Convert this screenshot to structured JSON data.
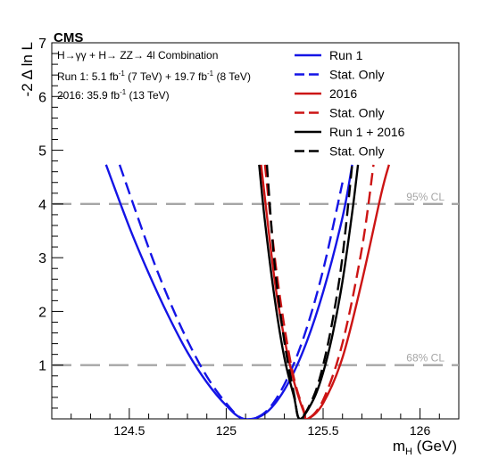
{
  "chart_data": {
    "type": "line",
    "experiment": "CMS",
    "annotations": {
      "process": "H→γγ + H→ ZZ→ 4l Combination",
      "run1_lumi_prefix": "Run 1: 5.1 fb",
      "run1_lumi_mid": " (7 TeV) + 19.7 fb",
      "run1_lumi_suffix": " (8 TeV)",
      "run2016_lumi_prefix": "2016: 35.9 fb",
      "run2016_lumi_suffix": " (13 TeV)",
      "inverse_exponent": "-1"
    },
    "xlabel_main": "m",
    "xlabel_sub": "H",
    "xlabel_unit": " (GeV)",
    "ylabel": "-2 Δ ln L",
    "xlim": [
      124.1,
      126.2
    ],
    "ylim": [
      0,
      7
    ],
    "x_ticks": [
      {
        "value": 124.5,
        "label": "124.5"
      },
      {
        "value": 125.0,
        "label": "125"
      },
      {
        "value": 125.5,
        "label": "125.5"
      },
      {
        "value": 126.0,
        "label": "126"
      }
    ],
    "y_ticks": [
      {
        "value": 1,
        "label": "1"
      },
      {
        "value": 2,
        "label": "2"
      },
      {
        "value": 3,
        "label": "3"
      },
      {
        "value": 4,
        "label": "4"
      },
      {
        "value": 5,
        "label": "5"
      },
      {
        "value": 6,
        "label": "6"
      },
      {
        "value": 7,
        "label": "7"
      }
    ],
    "reference_lines": [
      {
        "y": 4,
        "label": "95% CL",
        "color": "#a6a6a6"
      },
      {
        "y": 1,
        "label": "68% CL",
        "color": "#a6a6a6"
      }
    ],
    "series": [
      {
        "name": "Run 1",
        "color": "#1414e6",
        "dash": "solid",
        "x": [
          124.38,
          124.5,
          124.6,
          124.7,
          124.8,
          124.9,
          125.0,
          125.09,
          125.2,
          125.3,
          125.4,
          125.5,
          125.6,
          125.65
        ],
        "y": [
          4.73,
          3.57,
          2.71,
          1.93,
          1.24,
          0.68,
          0.25,
          0.0,
          0.1,
          0.54,
          1.29,
          2.36,
          3.75,
          4.73
        ]
      },
      {
        "name": "Stat. Only",
        "color": "#1414e6",
        "dash": "dashed",
        "x": [
          124.45,
          124.6,
          124.7,
          124.8,
          124.9,
          125.0,
          125.09,
          125.2,
          125.3,
          125.4,
          125.5,
          125.6
        ],
        "y": [
          4.73,
          3.18,
          2.26,
          1.46,
          0.79,
          0.29,
          0.0,
          0.12,
          0.64,
          1.52,
          2.77,
          4.4
        ]
      },
      {
        "name": "2016",
        "color": "#cc1414",
        "dash": "solid",
        "x": [
          125.18,
          125.25,
          125.3,
          125.35,
          125.4,
          125.42,
          125.5,
          125.6,
          125.7,
          125.8,
          125.84
        ],
        "y": [
          4.73,
          2.58,
          1.5,
          0.69,
          0.13,
          0.0,
          0.29,
          1.14,
          2.56,
          4.19,
          4.73
        ]
      },
      {
        "name": "Stat. Only",
        "color": "#cc1414",
        "dash": "dashed",
        "x": [
          125.2,
          125.25,
          125.3,
          125.35,
          125.4,
          125.42,
          125.5,
          125.6,
          125.7,
          125.76
        ],
        "y": [
          4.73,
          3.02,
          1.72,
          0.75,
          0.16,
          0.0,
          0.35,
          1.41,
          3.17,
          4.73
        ]
      },
      {
        "name": "Run 1 + 2016",
        "color": "#000000",
        "dash": "solid",
        "x": [
          125.17,
          125.2,
          125.25,
          125.3,
          125.35,
          125.38,
          125.45,
          125.5,
          125.55,
          125.6,
          125.65,
          125.68
        ],
        "y": [
          4.73,
          3.67,
          2.24,
          1.14,
          0.41,
          0.0,
          0.36,
          0.86,
          1.59,
          2.56,
          3.84,
          4.73
        ]
      },
      {
        "name": "Stat. Only",
        "color": "#000000",
        "dash": "dashed",
        "x": [
          125.21,
          125.25,
          125.3,
          125.35,
          125.38,
          125.45,
          125.5,
          125.55,
          125.6,
          125.65
        ],
        "y": [
          4.73,
          2.87,
          1.44,
          0.46,
          0.0,
          0.41,
          1.0,
          1.86,
          3.02,
          4.73
        ]
      }
    ],
    "legend": {
      "placement": "top-right",
      "columns": 1
    },
    "grid": false
  }
}
